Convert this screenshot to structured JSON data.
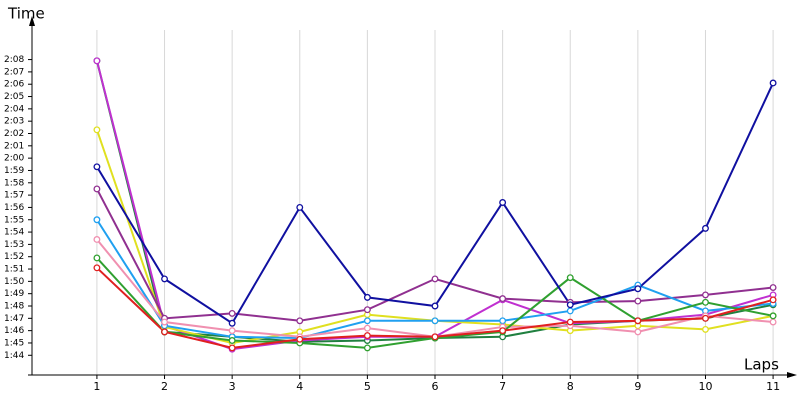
{
  "chart_data": {
    "type": "line",
    "y_label": "Time",
    "x_label": "Laps",
    "x": [
      1,
      2,
      3,
      4,
      5,
      6,
      7,
      8,
      9,
      10,
      11
    ],
    "xlim": [
      0.04,
      11.25
    ],
    "xticks": [
      1,
      2,
      3,
      4,
      5,
      6,
      7,
      8,
      9,
      10,
      11
    ],
    "ylim": [
      102.4,
      130.4
    ],
    "yticks": [
      {
        "value": 104,
        "label": "1:44"
      },
      {
        "value": 105,
        "label": "1:45"
      },
      {
        "value": 106,
        "label": "1:46"
      },
      {
        "value": 107,
        "label": "1:47"
      },
      {
        "value": 108,
        "label": "1:48"
      },
      {
        "value": 109,
        "label": "1:49"
      },
      {
        "value": 110,
        "label": "1:50"
      },
      {
        "value": 111,
        "label": "1:51"
      },
      {
        "value": 112,
        "label": "1:52"
      },
      {
        "value": 113,
        "label": "1:53"
      },
      {
        "value": 114,
        "label": "1:54"
      },
      {
        "value": 115,
        "label": "1:55"
      },
      {
        "value": 116,
        "label": "1:56"
      },
      {
        "value": 117,
        "label": "1:57"
      },
      {
        "value": 118,
        "label": "1:58"
      },
      {
        "value": 119,
        "label": "1:59"
      },
      {
        "value": 120,
        "label": "2:00"
      },
      {
        "value": 121,
        "label": "2:01"
      },
      {
        "value": 122,
        "label": "2:02"
      },
      {
        "value": 123,
        "label": "2:03"
      },
      {
        "value": 124,
        "label": "2:04"
      },
      {
        "value": 125,
        "label": "2:05"
      },
      {
        "value": 126,
        "label": "2:06"
      },
      {
        "value": 127,
        "label": "2:07"
      },
      {
        "value": 128,
        "label": "2:08"
      }
    ],
    "grid": "x",
    "series": [
      {
        "color": "#208040",
        "values": [
          127.9,
          105.9,
          105.5,
          105.1,
          105.2,
          105.4,
          105.5,
          106.5,
          106.8,
          107.0,
          108.1
        ]
      },
      {
        "color": "#c030d0",
        "values": [
          127.9,
          106.4,
          104.5,
          105.2,
          105.5,
          105.5,
          108.5,
          106.6,
          106.8,
          107.3,
          108.9
        ]
      },
      {
        "color": "#e0e020",
        "values": [
          122.3,
          106.3,
          105.0,
          105.9,
          107.3,
          106.8,
          106.5,
          106.0,
          106.4,
          106.1,
          107.2
        ]
      },
      {
        "color": "#903090",
        "values": [
          117.5,
          107.0,
          107.4,
          106.8,
          107.7,
          110.2,
          108.6,
          108.3,
          108.4,
          108.9,
          109.5
        ]
      },
      {
        "color": "#20a0f0",
        "values": [
          115.0,
          106.4,
          105.5,
          105.4,
          106.8,
          106.8,
          106.8,
          107.6,
          109.7,
          107.6,
          108.2
        ]
      },
      {
        "color": "#f090b0",
        "values": [
          113.4,
          106.7,
          106.0,
          105.5,
          106.2,
          105.5,
          106.3,
          106.4,
          105.9,
          107.2,
          106.7
        ]
      },
      {
        "color": "#30a030",
        "values": [
          111.9,
          105.9,
          105.2,
          105.0,
          104.6,
          105.4,
          105.9,
          110.3,
          106.8,
          108.3,
          107.2
        ]
      },
      {
        "color": "#e02020",
        "values": [
          111.1,
          105.9,
          104.6,
          105.3,
          105.6,
          105.5,
          106.0,
          106.7,
          106.8,
          107.0,
          108.5
        ]
      },
      {
        "color": "#1010a0",
        "values": [
          119.3,
          110.2,
          106.6,
          116.0,
          108.7,
          108.0,
          116.4,
          108.1,
          109.4,
          114.3,
          126.1
        ]
      }
    ]
  }
}
